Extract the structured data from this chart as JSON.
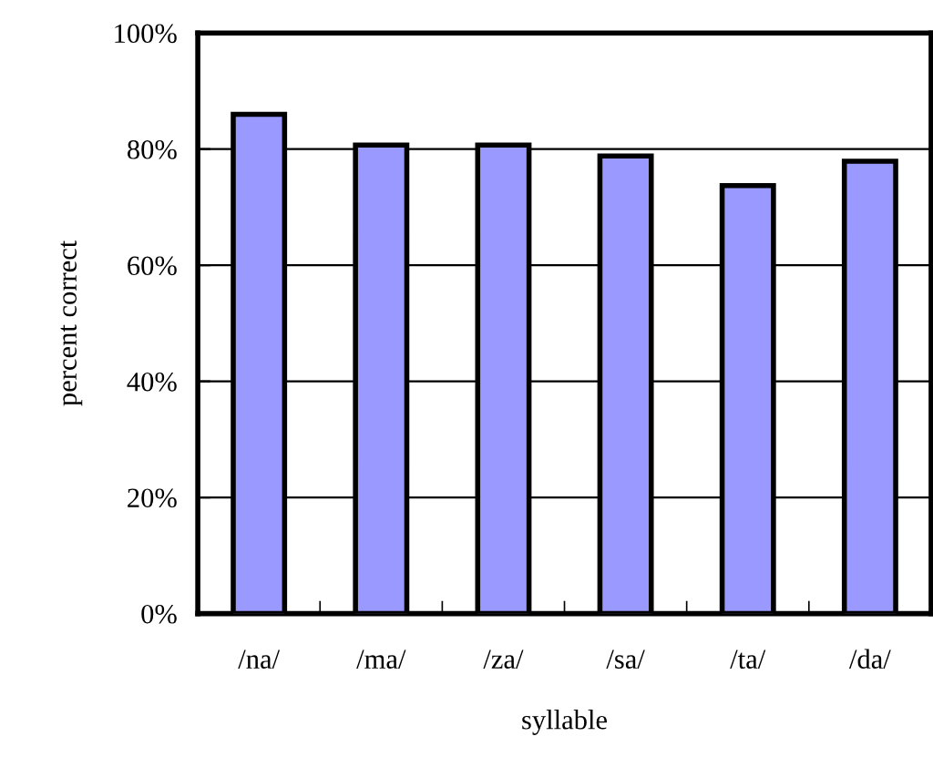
{
  "chart_data": {
    "type": "bar",
    "xlabel": "syllable",
    "ylabel": "percent correct",
    "categories": [
      "/na/",
      "/ma/",
      "/za/",
      "/sa/",
      "/ta/",
      "/da/"
    ],
    "values": [
      86,
      80.7,
      80.7,
      78.8,
      73.7,
      77.9
    ],
    "color": "#9999ff",
    "ylim": [
      0,
      100
    ],
    "yticks": [
      {
        "value": 0,
        "label": "0%"
      },
      {
        "value": 20,
        "label": "20%"
      },
      {
        "value": 40,
        "label": "40%"
      },
      {
        "value": 60,
        "label": "60%"
      },
      {
        "value": 80,
        "label": "80%"
      },
      {
        "value": 100,
        "label": "100%"
      }
    ],
    "grid": "y"
  }
}
